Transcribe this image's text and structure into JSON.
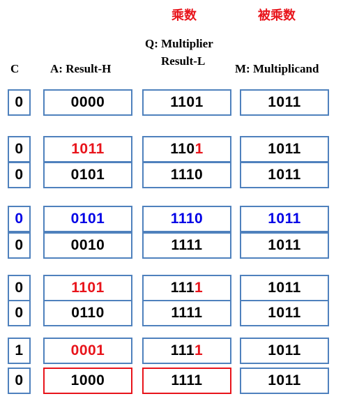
{
  "headers": {
    "multiplier_cn": "乘数",
    "multiplicand_cn": "被乘数",
    "c": "C",
    "a": "A: Result-H",
    "q_line1": "Q: Multiplier",
    "q_line2": "Result-L",
    "m": "M: Multiplicand"
  },
  "colors": {
    "box_border": "#4f81bd",
    "highlight_red": "#e8141b",
    "highlight_blue": "#0000e6",
    "text": "#000000"
  },
  "rows": [
    {
      "c": {
        "t": "0",
        "col": "black"
      },
      "a": {
        "t": "0000",
        "col": "black"
      },
      "q": {
        "pre": "1101",
        "last": "",
        "col": "black",
        "lastcol": "black"
      },
      "m": {
        "t": "1011",
        "col": "black"
      }
    },
    {
      "c": {
        "t": "0",
        "col": "black"
      },
      "a": {
        "t": "1011",
        "col": "red"
      },
      "q": {
        "pre": "110",
        "last": "1",
        "col": "black",
        "lastcol": "red"
      },
      "m": {
        "t": "1011",
        "col": "black"
      }
    },
    {
      "c": {
        "t": "0",
        "col": "black"
      },
      "a": {
        "t": "0101",
        "col": "black"
      },
      "q": {
        "pre": "1110",
        "last": "",
        "col": "black",
        "lastcol": "black"
      },
      "m": {
        "t": "1011",
        "col": "black"
      }
    },
    {
      "c": {
        "t": "0",
        "col": "blue"
      },
      "a": {
        "t": "0101",
        "col": "blue"
      },
      "q": {
        "pre": "1110",
        "last": "",
        "col": "blue",
        "lastcol": "blue"
      },
      "m": {
        "t": "1011",
        "col": "blue"
      }
    },
    {
      "c": {
        "t": "0",
        "col": "black"
      },
      "a": {
        "t": "0010",
        "col": "black"
      },
      "q": {
        "pre": "1111",
        "last": "",
        "col": "black",
        "lastcol": "black"
      },
      "m": {
        "t": "1011",
        "col": "black"
      }
    },
    {
      "c": {
        "t": "0",
        "col": "black"
      },
      "a": {
        "t": "1101",
        "col": "red"
      },
      "q": {
        "pre": "111",
        "last": "1",
        "col": "black",
        "lastcol": "red"
      },
      "m": {
        "t": "1011",
        "col": "black"
      }
    },
    {
      "c": {
        "t": "0",
        "col": "black"
      },
      "a": {
        "t": "0110",
        "col": "black"
      },
      "q": {
        "pre": "1111",
        "last": "",
        "col": "black",
        "lastcol": "black"
      },
      "m": {
        "t": "1011",
        "col": "black"
      }
    },
    {
      "c": {
        "t": "1",
        "col": "black"
      },
      "a": {
        "t": "0001",
        "col": "red"
      },
      "q": {
        "pre": "111",
        "last": "1",
        "col": "black",
        "lastcol": "red"
      },
      "m": {
        "t": "1011",
        "col": "black"
      }
    },
    {
      "c": {
        "t": "0",
        "col": "black"
      },
      "a": {
        "t": "1000",
        "col": "black",
        "border": "red"
      },
      "q": {
        "pre": "1111",
        "last": "",
        "col": "black",
        "lastcol": "black",
        "border": "red"
      },
      "m": {
        "t": "1011",
        "col": "black"
      }
    }
  ]
}
